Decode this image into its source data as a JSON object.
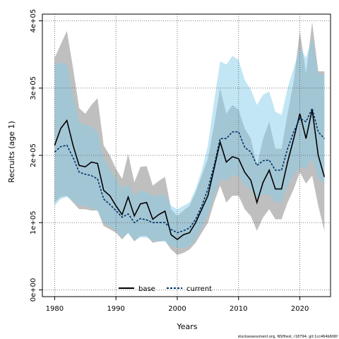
{
  "chart_data": {
    "type": "line",
    "xlabel": "Years",
    "ylabel": "Recruits (age 1)",
    "xlim": [
      1978,
      2025
    ],
    "ylim": [
      -10000,
      410000
    ],
    "xticks": [
      1980,
      1990,
      2000,
      2010,
      2020
    ],
    "yticks": [
      0,
      100000,
      200000,
      300000,
      400000
    ],
    "ytick_labels": [
      "0e+00",
      "1e+05",
      "2e+05",
      "3e+05",
      "4e+05"
    ],
    "grid": true,
    "grid_style": "dotted",
    "legend_position": "bottom-center",
    "credit": "stockassessment.org, NSHtest, r18794, git:1cc464b606f",
    "x": [
      1980,
      1981,
      1982,
      1983,
      1984,
      1985,
      1986,
      1987,
      1988,
      1989,
      1990,
      1991,
      1992,
      1993,
      1994,
      1995,
      1996,
      1997,
      1998,
      1999,
      2000,
      2001,
      2002,
      2003,
      2004,
      2005,
      2006,
      2007,
      2008,
      2009,
      2010,
      2011,
      2012,
      2013,
      2014,
      2015,
      2016,
      2017,
      2018,
      2019,
      2020,
      2021,
      2022,
      2023,
      2024
    ],
    "series": [
      {
        "name": "base",
        "color": "#000000",
        "band_color": "#808080",
        "line_style": "solid",
        "values": [
          215000,
          240000,
          252000,
          215000,
          185000,
          183000,
          190000,
          188000,
          148000,
          140000,
          125000,
          112000,
          138000,
          110000,
          128000,
          130000,
          105000,
          112000,
          117000,
          82000,
          75000,
          82000,
          85000,
          100000,
          120000,
          140000,
          180000,
          220000,
          190000,
          198000,
          195000,
          175000,
          163000,
          130000,
          160000,
          178000,
          150000,
          150000,
          190000,
          225000,
          262000,
          225000,
          268000,
          200000,
          168000
        ],
        "lower": [
          130000,
          138000,
          140000,
          130000,
          120000,
          120000,
          118000,
          118000,
          95000,
          90000,
          85000,
          75000,
          85000,
          72000,
          80000,
          80000,
          70000,
          72000,
          73000,
          60000,
          52000,
          55000,
          60000,
          70000,
          85000,
          100000,
          130000,
          155000,
          130000,
          140000,
          140000,
          120000,
          110000,
          88000,
          108000,
          120000,
          105000,
          105000,
          130000,
          150000,
          175000,
          158000,
          170000,
          125000,
          88000
        ],
        "upper": [
          345000,
          365000,
          385000,
          330000,
          270000,
          262000,
          275000,
          285000,
          215000,
          200000,
          180000,
          165000,
          202000,
          160000,
          183000,
          184000,
          155000,
          162000,
          168000,
          120000,
          110000,
          118000,
          125000,
          145000,
          170000,
          195000,
          245000,
          300000,
          262000,
          275000,
          268000,
          240000,
          225000,
          185000,
          225000,
          250000,
          210000,
          210000,
          262000,
          310000,
          385000,
          322000,
          398000,
          325000,
          325000
        ]
      },
      {
        "name": "current",
        "color": "#003366",
        "band_color": "#87ceeb",
        "line_style": "dashed",
        "values": [
          205000,
          213000,
          215000,
          197000,
          175000,
          172000,
          170000,
          165000,
          135000,
          127000,
          118000,
          108000,
          113000,
          100000,
          106000,
          104000,
          100000,
          100000,
          100000,
          90000,
          85000,
          88000,
          92000,
          105000,
          125000,
          150000,
          185000,
          225000,
          225000,
          235000,
          235000,
          212000,
          205000,
          185000,
          192000,
          193000,
          178000,
          178000,
          210000,
          235000,
          255000,
          250000,
          270000,
          235000,
          225000
        ],
        "lower": [
          125000,
          135000,
          138000,
          133000,
          125000,
          125000,
          122000,
          118000,
          100000,
          95000,
          88000,
          78000,
          84000,
          74000,
          78000,
          78000,
          74000,
          72000,
          72000,
          65000,
          62000,
          62000,
          65000,
          76000,
          92000,
          112000,
          140000,
          165000,
          162000,
          170000,
          170000,
          155000,
          150000,
          137000,
          142000,
          142000,
          130000,
          130000,
          155000,
          172000,
          183000,
          180000,
          195000,
          165000,
          158000
        ],
        "upper": [
          335000,
          338000,
          335000,
          290000,
          250000,
          245000,
          243000,
          235000,
          195000,
          180000,
          165000,
          150000,
          157000,
          140000,
          148000,
          145000,
          140000,
          140000,
          142000,
          125000,
          120000,
          125000,
          130000,
          150000,
          178000,
          215000,
          280000,
          340000,
          335000,
          348000,
          342000,
          312000,
          298000,
          275000,
          290000,
          295000,
          265000,
          260000,
          300000,
          330000,
          360000,
          345000,
          375000,
          322000,
          320000
        ]
      }
    ]
  }
}
